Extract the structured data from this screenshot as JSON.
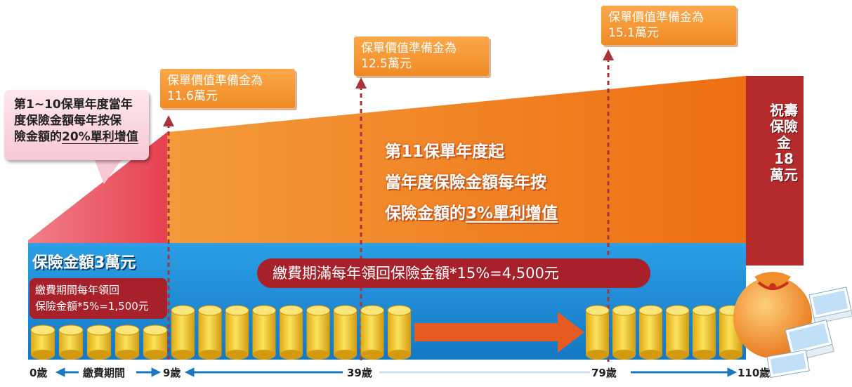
{
  "colors": {
    "orange_area": "#f07f1f",
    "pink_area": "#e8545f",
    "blue_band": "#1e8fd8",
    "red_strip": "#b52a2a",
    "accent_red": "#a8202a",
    "coin_gold": "#f3c628"
  },
  "value_boxes": [
    {
      "line1": "保單價值準備金為",
      "line2": "11.6萬元"
    },
    {
      "line1": "保單價值準備金為",
      "line2": "12.5萬元"
    },
    {
      "line1": "保單價值準備金為",
      "line2": "15.1萬元"
    }
  ],
  "callout": {
    "line1": "第1~10保單年度當年",
    "line2": "度保險金額每年按保",
    "line3_pre": "險金額的",
    "line3_ul": "20%單利增值"
  },
  "mid_text": {
    "line1": "第11保單年度起",
    "line2": "當年度保險金額每年按",
    "line3_pre": "保險金額的",
    "line3_ul": "3%單利增值"
  },
  "sum_assured_label": "保險金額3萬元",
  "payment_period_return": {
    "line1": "繳費期間每年領回",
    "line2": "保險金額*5%=1,500元"
  },
  "maturity_return": "繳費期滿每年領回保險金額*15%=4,500元",
  "death_benefit": "祝壽保險金18萬元",
  "timeline": {
    "ticks": [
      "0歲",
      "9歲",
      "39歲",
      "79歲",
      "110歲"
    ],
    "period_label": "繳費期間"
  },
  "icons": [
    "coin-stack-icon",
    "money-bag-icon",
    "banknote-stack-icon",
    "arrow-right-icon"
  ]
}
